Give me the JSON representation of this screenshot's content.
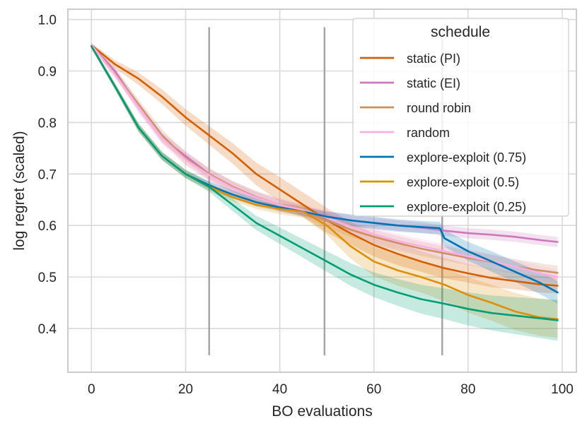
{
  "chart_data": {
    "type": "line",
    "title": "",
    "xlabel": "BO evaluations",
    "ylabel": "log regret (scaled)",
    "xlim": [
      -5,
      103
    ],
    "ylim": [
      0.315,
      1.02
    ],
    "xticks": [
      0,
      20,
      40,
      60,
      80,
      100
    ],
    "yticks": [
      0.4,
      0.5,
      0.6,
      0.7,
      0.8,
      0.9,
      1.0
    ],
    "ytick_labels": [
      "0.4",
      "0.5",
      "0.6",
      "0.7",
      "0.8",
      "0.9",
      "1.0"
    ],
    "grid": true,
    "legend_title": "schedule",
    "legend_position": "top-right",
    "vertical_markers": [
      {
        "x": 25,
        "y_from": 0.348,
        "y_to": 0.985
      },
      {
        "x": 49.5,
        "y_from": 0.348,
        "y_to": 0.985
      },
      {
        "x": 74.5,
        "y_from": 0.348,
        "y_to": 0.985
      }
    ],
    "series": [
      {
        "name": "static (PI)",
        "color": "#d55e00",
        "x": [
          0,
          5,
          10,
          15,
          20,
          25,
          30,
          35,
          40,
          45,
          50,
          55,
          60,
          65,
          70,
          75,
          80,
          85,
          90,
          95,
          99
        ],
        "y": [
          0.95,
          0.913,
          0.885,
          0.85,
          0.81,
          0.775,
          0.74,
          0.7,
          0.67,
          0.64,
          0.61,
          0.585,
          0.562,
          0.545,
          0.53,
          0.517,
          0.507,
          0.498,
          0.492,
          0.486,
          0.483
        ],
        "band": [
          0.004,
          0.008,
          0.012,
          0.014,
          0.016,
          0.018,
          0.02,
          0.022,
          0.024,
          0.024,
          0.024,
          0.022,
          0.022,
          0.022,
          0.02,
          0.02,
          0.018,
          0.018,
          0.016,
          0.016,
          0.015
        ]
      },
      {
        "name": "static (EI)",
        "color": "#cc78bc",
        "x": [
          0,
          5,
          10,
          15,
          20,
          25,
          30,
          35,
          40,
          45,
          50,
          55,
          60,
          65,
          70,
          75,
          80,
          85,
          90,
          95,
          99
        ],
        "y": [
          0.95,
          0.9,
          0.83,
          0.77,
          0.735,
          0.7,
          0.675,
          0.655,
          0.64,
          0.628,
          0.618,
          0.61,
          0.605,
          0.6,
          0.596,
          0.59,
          0.585,
          0.582,
          0.578,
          0.572,
          0.568
        ],
        "band": [
          0.004,
          0.008,
          0.01,
          0.01,
          0.01,
          0.01,
          0.01,
          0.01,
          0.01,
          0.01,
          0.01,
          0.01,
          0.01,
          0.01,
          0.01,
          0.01,
          0.01,
          0.01,
          0.01,
          0.01,
          0.01
        ]
      },
      {
        "name": "round robin",
        "color": "#ca9161",
        "x": [
          0,
          5,
          10,
          15,
          20,
          25,
          30,
          35,
          40,
          45,
          50,
          55,
          60,
          65,
          70,
          75,
          80,
          85,
          90,
          95,
          99
        ],
        "y": [
          0.95,
          0.895,
          0.835,
          0.775,
          0.73,
          0.7,
          0.675,
          0.655,
          0.64,
          0.628,
          0.61,
          0.592,
          0.578,
          0.566,
          0.555,
          0.546,
          0.537,
          0.529,
          0.52,
          0.513,
          0.508
        ],
        "band": [
          0.004,
          0.008,
          0.01,
          0.012,
          0.012,
          0.012,
          0.012,
          0.012,
          0.012,
          0.012,
          0.014,
          0.014,
          0.014,
          0.014,
          0.014,
          0.014,
          0.014,
          0.014,
          0.014,
          0.014,
          0.014
        ]
      },
      {
        "name": "random",
        "color": "#fbafe4",
        "x": [
          0,
          5,
          10,
          15,
          20,
          25,
          30,
          35,
          40,
          45,
          50,
          55,
          60,
          65,
          70,
          75,
          80,
          85,
          90,
          95,
          99
        ],
        "y": [
          0.95,
          0.893,
          0.83,
          0.77,
          0.728,
          0.698,
          0.673,
          0.654,
          0.64,
          0.63,
          0.615,
          0.598,
          0.583,
          0.57,
          0.56,
          0.55,
          0.54,
          0.53,
          0.52,
          0.508,
          0.5
        ],
        "band": [
          0.004,
          0.008,
          0.01,
          0.012,
          0.012,
          0.012,
          0.012,
          0.012,
          0.012,
          0.012,
          0.014,
          0.014,
          0.014,
          0.014,
          0.014,
          0.014,
          0.014,
          0.014,
          0.014,
          0.014,
          0.014
        ]
      },
      {
        "name": "explore-exploit (0.75)",
        "color": "#0173b2",
        "x": [
          0,
          5,
          10,
          15,
          20,
          25,
          30,
          35,
          40,
          45,
          50,
          55,
          60,
          65,
          70,
          74,
          75,
          80,
          85,
          90,
          95,
          99
        ],
        "y": [
          0.948,
          0.87,
          0.79,
          0.735,
          0.7,
          0.678,
          0.66,
          0.645,
          0.635,
          0.627,
          0.617,
          0.61,
          0.605,
          0.6,
          0.597,
          0.595,
          0.575,
          0.55,
          0.53,
          0.51,
          0.49,
          0.47
        ],
        "band": [
          0.004,
          0.006,
          0.008,
          0.008,
          0.008,
          0.008,
          0.008,
          0.008,
          0.008,
          0.008,
          0.01,
          0.012,
          0.012,
          0.012,
          0.012,
          0.012,
          0.016,
          0.018,
          0.02,
          0.02,
          0.022,
          0.022
        ]
      },
      {
        "name": "explore-exploit (0.5)",
        "color": "#de8f05",
        "x": [
          0,
          5,
          10,
          15,
          20,
          25,
          30,
          35,
          40,
          45,
          50,
          55,
          60,
          65,
          70,
          75,
          80,
          85,
          90,
          95,
          99
        ],
        "y": [
          0.948,
          0.87,
          0.79,
          0.735,
          0.7,
          0.675,
          0.655,
          0.64,
          0.632,
          0.627,
          0.6,
          0.56,
          0.53,
          0.513,
          0.5,
          0.485,
          0.465,
          0.45,
          0.433,
          0.422,
          0.418
        ],
        "band": [
          0.004,
          0.006,
          0.008,
          0.008,
          0.008,
          0.008,
          0.008,
          0.008,
          0.01,
          0.012,
          0.018,
          0.024,
          0.028,
          0.03,
          0.03,
          0.032,
          0.034,
          0.035,
          0.036,
          0.036,
          0.036
        ]
      },
      {
        "name": "explore-exploit (0.25)",
        "color": "#029e73",
        "x": [
          0,
          5,
          10,
          15,
          20,
          25,
          30,
          35,
          40,
          45,
          50,
          55,
          60,
          65,
          70,
          75,
          80,
          85,
          90,
          95,
          99
        ],
        "y": [
          0.948,
          0.87,
          0.79,
          0.735,
          0.7,
          0.675,
          0.64,
          0.605,
          0.58,
          0.555,
          0.53,
          0.505,
          0.485,
          0.47,
          0.457,
          0.448,
          0.438,
          0.43,
          0.425,
          0.42,
          0.416
        ],
        "band": [
          0.004,
          0.006,
          0.008,
          0.008,
          0.008,
          0.01,
          0.012,
          0.014,
          0.016,
          0.018,
          0.02,
          0.022,
          0.024,
          0.026,
          0.028,
          0.03,
          0.032,
          0.034,
          0.036,
          0.038,
          0.04
        ]
      }
    ]
  }
}
